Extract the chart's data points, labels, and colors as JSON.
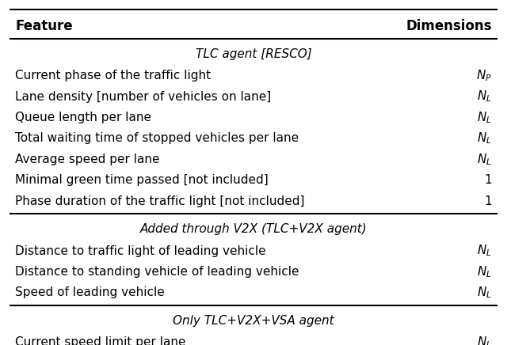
{
  "header": [
    "Feature",
    "Dimensions"
  ],
  "sections": [
    {
      "section_title": "TLC agent [RESCO]",
      "rows": [
        [
          "Current phase of the traffic light",
          "$N_P$"
        ],
        [
          "Lane density [number of vehicles on lane]",
          "$N_L$"
        ],
        [
          "Queue length per lane",
          "$N_L$"
        ],
        [
          "Total waiting time of stopped vehicles per lane",
          "$N_L$"
        ],
        [
          "Average speed per lane",
          "$N_L$"
        ],
        [
          "Minimal green time passed [not included]",
          "1"
        ],
        [
          "Phase duration of the traffic light [not included]",
          "1"
        ]
      ]
    },
    {
      "section_title": "Added through V2X (TLC+V2X agent)",
      "rows": [
        [
          "Distance to traffic light of leading vehicle",
          "$N_L$"
        ],
        [
          "Distance to standing vehicle of leading vehicle",
          "$N_L$"
        ],
        [
          "Speed of leading vehicle",
          "$N_L$"
        ]
      ]
    },
    {
      "section_title": "Only TLC+V2X+VSA agent",
      "rows": [
        [
          "Current speed limit per lane",
          "$N_L$"
        ]
      ]
    }
  ],
  "bg_color": "white",
  "text_color": "black",
  "header_fontsize": 12,
  "body_fontsize": 11,
  "section_fontsize": 11
}
